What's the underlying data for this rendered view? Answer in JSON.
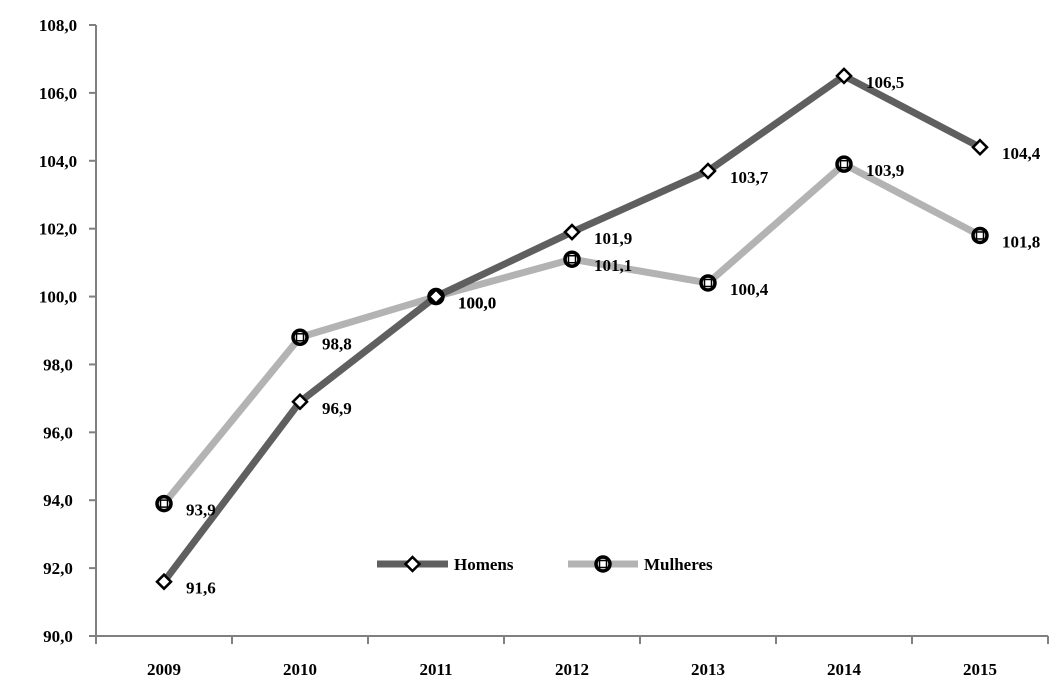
{
  "chart_data": {
    "type": "line",
    "categories": [
      "2009",
      "2010",
      "2011",
      "2012",
      "2013",
      "2014",
      "2015"
    ],
    "series": [
      {
        "name": "Homens",
        "values": [
          91.6,
          96.9,
          100.0,
          101.9,
          103.7,
          106.5,
          104.4
        ],
        "labels": [
          "91,6",
          "96,9",
          "100,0",
          "101,9",
          "103,7",
          "106,5",
          "104,4"
        ],
        "color": "#5f5f5f",
        "marker": "diamond-open"
      },
      {
        "name": "Mulheres",
        "values": [
          93.9,
          98.8,
          100.0,
          101.1,
          100.4,
          103.9,
          101.8
        ],
        "labels": [
          "93,9",
          "98,8",
          "100,0",
          "101,1",
          "100,4",
          "103,9",
          "101,8"
        ],
        "color": "#b3b3b3",
        "marker": "circle-open"
      }
    ],
    "y_ticks": [
      "90,0",
      "92,0",
      "94,0",
      "96,0",
      "98,0",
      "100,0",
      "102,0",
      "104,0",
      "106,0",
      "108,0"
    ],
    "ylim": [
      90,
      108
    ],
    "title": "",
    "xlabel": "",
    "ylabel": "",
    "grid": false,
    "legend": "inside-bottom-center"
  }
}
